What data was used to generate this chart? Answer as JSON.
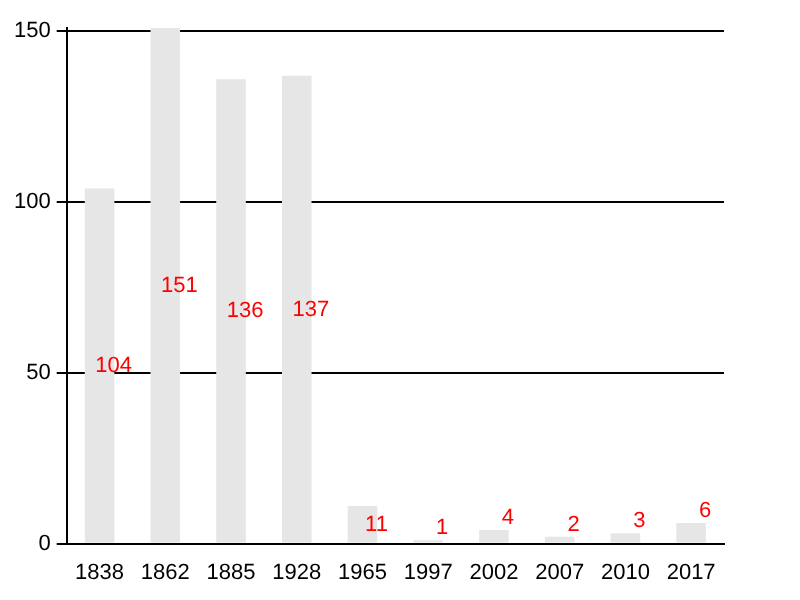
{
  "chart_data": {
    "type": "bar",
    "categories": [
      "1838",
      "1862",
      "1885",
      "1928",
      "1965",
      "1997",
      "2002",
      "2007",
      "2010",
      "2017"
    ],
    "values": [
      104,
      151,
      136,
      137,
      11,
      1,
      4,
      2,
      3,
      6
    ],
    "color": "#e6e6e6",
    "ylim": [
      0,
      151
    ],
    "yticks": [
      0,
      50,
      100,
      150
    ],
    "grid": "y",
    "data_labels": true
  }
}
